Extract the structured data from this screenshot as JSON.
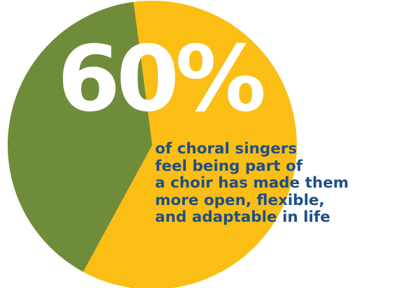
{
  "headline": "60%",
  "caption_lines": [
    "of choral singers",
    "feel being part of",
    "a choir has made them",
    "more open, flexible,",
    "and adaptable in life"
  ],
  "colors": {
    "highlight": "#fbbe14",
    "remainder": "#6f8c3a",
    "headline_text": "#ffffff",
    "caption_text": "#1f4f86",
    "background": "#ffffff"
  },
  "chart_data": {
    "type": "pie",
    "slices": [
      {
        "value": 60,
        "color": "#fbbe14"
      },
      {
        "value": 40,
        "color": "#6f8c3a"
      }
    ],
    "title": "",
    "legend": "none",
    "data_label": "60%"
  }
}
